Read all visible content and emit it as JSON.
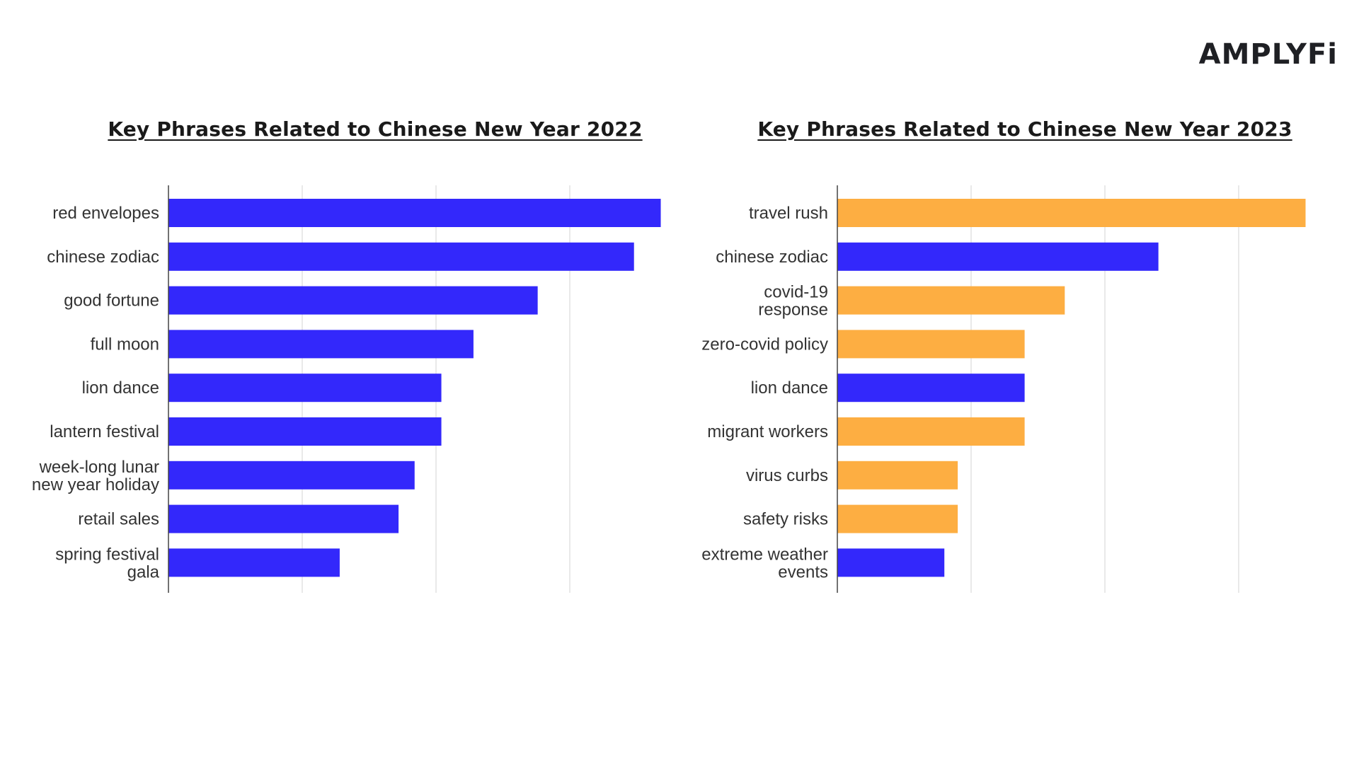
{
  "logo": {
    "text": "AMPLYFi",
    "color": "#1f2024"
  },
  "chart_data": [
    {
      "type": "bar",
      "orientation": "horizontal",
      "title": "Key Phrases Related to Chinese New Year 2022",
      "categories": [
        [
          "red envelopes"
        ],
        [
          "chinese zodiac"
        ],
        [
          "good fortune"
        ],
        [
          "full moon"
        ],
        [
          "lion dance"
        ],
        [
          "lantern festival"
        ],
        [
          "week-long lunar",
          "new year holiday"
        ],
        [
          "retail sales"
        ],
        [
          "spring festival",
          "gala"
        ]
      ],
      "values": [
        18.4,
        17.4,
        13.8,
        11.4,
        10.2,
        10.2,
        9.2,
        8.6,
        6.4
      ],
      "colors": [
        "#3328fb",
        "#3328fb",
        "#3328fb",
        "#3328fb",
        "#3328fb",
        "#3328fb",
        "#3328fb",
        "#3328fb",
        "#3328fb"
      ],
      "xlim": [
        0,
        20
      ],
      "gridlines": [
        0,
        5,
        10,
        15
      ],
      "grid": true,
      "xlabel": "",
      "ylabel": ""
    },
    {
      "type": "bar",
      "orientation": "horizontal",
      "title": "Key Phrases Related to Chinese New Year 2023",
      "categories": [
        [
          "travel rush"
        ],
        [
          "chinese zodiac"
        ],
        [
          "covid-19",
          "response"
        ],
        [
          "zero-covid policy"
        ],
        [
          "lion dance"
        ],
        [
          "migrant workers"
        ],
        [
          "virus curbs"
        ],
        [
          "safety risks"
        ],
        [
          "extreme weather",
          "events"
        ]
      ],
      "values": [
        17.5,
        12.0,
        8.5,
        7.0,
        7.0,
        7.0,
        4.5,
        4.5,
        4.0
      ],
      "colors": [
        "#fdae42",
        "#3328fb",
        "#fdae42",
        "#fdae42",
        "#3328fb",
        "#fdae42",
        "#fdae42",
        "#fdae42",
        "#3328fb"
      ],
      "xlim": [
        0,
        18
      ],
      "gridlines": [
        0,
        5,
        10,
        15
      ],
      "grid": true,
      "xlabel": "",
      "ylabel": ""
    }
  ]
}
